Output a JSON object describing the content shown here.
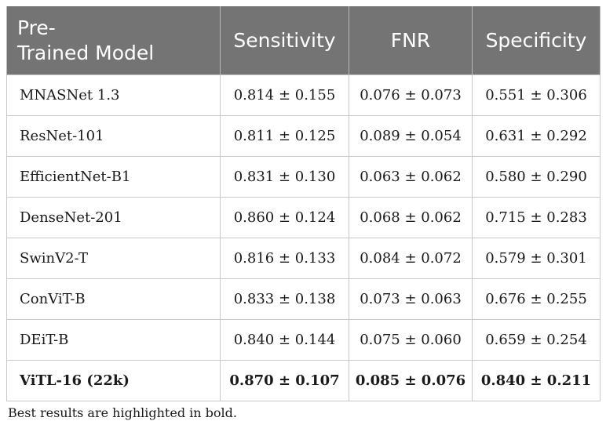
{
  "table": {
    "headers": {
      "model_line1": "Pre-",
      "model_line2": "Trained Model",
      "sensitivity": "Sensitivity",
      "fnr": "FNR",
      "specificity": "Specificity"
    },
    "rows": [
      {
        "model": "MNASNet 1.3",
        "sensitivity": "0.814 ± 0.155",
        "fnr": "0.076 ± 0.073",
        "specificity": "0.551 ± 0.306"
      },
      {
        "model": "ResNet-101",
        "sensitivity": "0.811 ± 0.125",
        "fnr": "0.089 ± 0.054",
        "specificity": "0.631 ± 0.292"
      },
      {
        "model": "EfficientNet-B1",
        "sensitivity": "0.831 ± 0.130",
        "fnr": "0.063 ± 0.062",
        "specificity": "0.580 ± 0.290"
      },
      {
        "model": "DenseNet-201",
        "sensitivity": "0.860 ± 0.124",
        "fnr": "0.068 ± 0.062",
        "specificity": "0.715 ± 0.283"
      },
      {
        "model": "SwinV2-T",
        "sensitivity": "0.816 ± 0.133",
        "fnr": "0.084 ± 0.072",
        "specificity": "0.579 ± 0.301"
      },
      {
        "model": "ConViT-B",
        "sensitivity": "0.833 ± 0.138",
        "fnr": "0.073 ± 0.063",
        "specificity": "0.676 ± 0.255"
      },
      {
        "model": "DEiT-B",
        "sensitivity": "0.840 ± 0.144",
        "fnr": "0.075 ± 0.060",
        "specificity": "0.659 ± 0.254"
      },
      {
        "model": "ViTL-16 (22k)",
        "sensitivity": "0.870 ± 0.107",
        "fnr": "0.085 ± 0.076",
        "specificity": "0.840 ± 0.211"
      }
    ],
    "footnote": "Best results are highlighted in bold."
  }
}
